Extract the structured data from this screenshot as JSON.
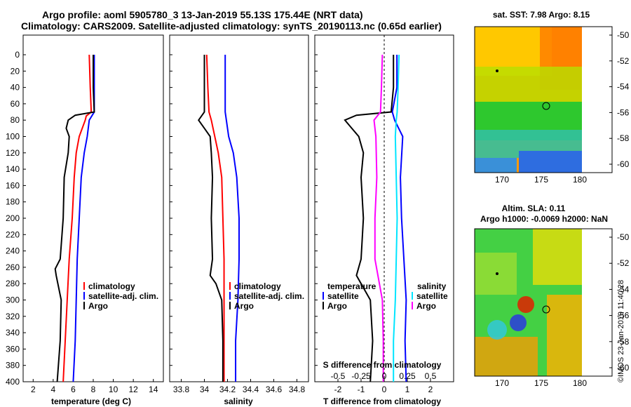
{
  "header": {
    "line1": "Argo profile: aoml 5905780_3 13-Jan-2019 55.13S 175.44E (NRT data)",
    "line2": "Climatology: CARS2009. Satellite-adjusted climatology: synTS_20190113.nc (0.65d earlier)"
  },
  "colors": {
    "climatology": "#ff0000",
    "satellite": "#0000ff",
    "argo": "#000000",
    "salinity_diff_clim": "#ff00ff",
    "salinity_diff_sat": "#00e5ff"
  },
  "depth_axis": {
    "ticks": [
      "0",
      "20",
      "40",
      "60",
      "80",
      "100",
      "120",
      "140",
      "160",
      "180",
      "200",
      "220",
      "240",
      "260",
      "280",
      "300",
      "320",
      "340",
      "360",
      "380",
      "400"
    ]
  },
  "panels": {
    "temperature": {
      "xlabel": "temperature (deg C)",
      "xticks": [
        "2",
        "4",
        "6",
        "8",
        "10",
        "12",
        "14"
      ],
      "legend": [
        "climatology",
        "satellite-adj. clim.",
        "Argo"
      ]
    },
    "salinity": {
      "xlabel": "salinity",
      "xticks": [
        "33.8",
        "34",
        "34.2",
        "34.4",
        "34.6",
        "34.8"
      ],
      "legend": [
        "climatology",
        "satellite-adj. clim.",
        "Argo"
      ]
    },
    "difference": {
      "xlabel": "T difference from climatology",
      "top_label": "S difference from climatology",
      "xticks_T": [
        "-2",
        "-1",
        "0",
        "1",
        "2"
      ],
      "xticks_S": [
        "-0.5",
        "-0.25",
        "0",
        "0.25",
        "0.5"
      ],
      "legend_temp_title": "temperature",
      "legend_sal_title": "salinity",
      "legend_temp": [
        "satellite",
        "Argo"
      ],
      "legend_sal": [
        "satellite",
        "Argo"
      ]
    }
  },
  "maps": {
    "sst": {
      "title": "sat. SST: 7.98 Argo: 8.15",
      "yticks": [
        "-50",
        "-52",
        "-54",
        "-56",
        "-58",
        "-60"
      ],
      "xticks": [
        "170",
        "175",
        "180"
      ]
    },
    "sla": {
      "title1": "Altim. SLA: 0.11",
      "title2": "Argo h1000: -0.0069 h2000: NaN",
      "yticks": [
        "-50",
        "-52",
        "-54",
        "-56",
        "-58",
        "-60"
      ],
      "xticks": [
        "170",
        "175",
        "180"
      ]
    }
  },
  "watermark": "©IMOS 23-Jan-2019 11:40:28",
  "chart_data": [
    {
      "type": "line",
      "title": "temperature profile",
      "xlabel": "temperature (deg C)",
      "ylabel": "depth",
      "xlim": [
        1,
        15
      ],
      "ylim": [
        400,
        0
      ],
      "series": [
        {
          "name": "climatology",
          "depth": [
            0,
            40,
            70,
            75,
            80,
            100,
            120,
            150,
            200,
            250,
            300,
            350,
            400
          ],
          "values": [
            7.6,
            7.7,
            7.8,
            7.3,
            7.2,
            6.6,
            6.3,
            6.1,
            5.9,
            5.6,
            5.4,
            5.2,
            5.0
          ]
        },
        {
          "name": "satellite-adj. clim.",
          "depth": [
            0,
            40,
            70,
            80,
            100,
            120,
            150,
            200,
            250,
            300,
            350,
            400
          ],
          "values": [
            8.1,
            8.1,
            8.1,
            7.6,
            7.4,
            7.1,
            6.8,
            6.6,
            6.4,
            6.3,
            6.2,
            6.0
          ]
        },
        {
          "name": "Argo",
          "depth": [
            0,
            40,
            70,
            74,
            80,
            90,
            100,
            120,
            150,
            200,
            250,
            262,
            270,
            300,
            350,
            400
          ],
          "values": [
            8.0,
            8.0,
            8.1,
            6.2,
            5.5,
            5.3,
            5.6,
            5.5,
            5.1,
            5.0,
            4.7,
            4.2,
            4.3,
            4.8,
            4.7,
            4.4
          ]
        }
      ]
    },
    {
      "type": "line",
      "title": "salinity profile",
      "xlabel": "salinity",
      "ylabel": "depth",
      "xlim": [
        33.7,
        34.9
      ],
      "ylim": [
        400,
        0
      ],
      "series": [
        {
          "name": "climatology",
          "depth": [
            0,
            40,
            70,
            80,
            100,
            120,
            150,
            200,
            250,
            300,
            350,
            400
          ],
          "values": [
            34.02,
            34.03,
            34.04,
            34.06,
            34.09,
            34.12,
            34.15,
            34.16,
            34.17,
            34.17,
            34.17,
            34.17
          ]
        },
        {
          "name": "satellite-adj. clim.",
          "depth": [
            0,
            40,
            70,
            80,
            100,
            120,
            150,
            200,
            250,
            300,
            350,
            400
          ],
          "values": [
            34.18,
            34.18,
            34.18,
            34.19,
            34.21,
            34.25,
            34.28,
            34.3,
            34.3,
            34.29,
            34.27,
            34.27
          ]
        },
        {
          "name": "Argo",
          "depth": [
            0,
            40,
            70,
            80,
            90,
            100,
            120,
            150,
            200,
            250,
            270,
            280,
            300,
            350,
            400
          ],
          "values": [
            34.0,
            34.0,
            34.0,
            33.95,
            34.0,
            34.05,
            34.06,
            34.07,
            34.06,
            34.07,
            34.05,
            34.1,
            34.15,
            34.16,
            34.16
          ]
        }
      ]
    },
    {
      "type": "line",
      "title": "difference from climatology",
      "xlabel": "T difference from climatology",
      "ylabel": "depth",
      "xlim": [
        -3,
        3
      ],
      "ylim": [
        400,
        0
      ],
      "series": [
        {
          "name": "temperature satellite",
          "depth": [
            0,
            40,
            70,
            80,
            100,
            150,
            200,
            250,
            300,
            350,
            400
          ],
          "values": [
            0.55,
            0.55,
            0.35,
            0.45,
            0.8,
            0.7,
            0.75,
            0.85,
            0.95,
            0.9,
            0.95
          ]
        },
        {
          "name": "temperature Argo",
          "depth": [
            0,
            40,
            70,
            74,
            80,
            90,
            100,
            120,
            150,
            200,
            250,
            270,
            300,
            350,
            400
          ],
          "values": [
            0.4,
            0.4,
            0.3,
            -1.2,
            -1.7,
            -1.4,
            -1.1,
            -0.9,
            -1.0,
            -0.9,
            -1.0,
            -1.2,
            -0.6,
            -0.5,
            -0.6
          ]
        },
        {
          "name": "salinity satellite",
          "depth": [
            0,
            40,
            70,
            80,
            100,
            150,
            200,
            250,
            300,
            350,
            400
          ],
          "values": [
            0.16,
            0.15,
            0.14,
            0.13,
            0.12,
            0.13,
            0.14,
            0.13,
            0.12,
            0.1,
            0.1
          ]
        },
        {
          "name": "salinity Argo",
          "depth": [
            0,
            40,
            70,
            80,
            100,
            150,
            200,
            250,
            300,
            350,
            400
          ],
          "values": [
            -0.02,
            -0.03,
            -0.04,
            -0.11,
            -0.09,
            -0.08,
            -0.1,
            -0.1,
            -0.02,
            -0.01,
            -0.01
          ]
        }
      ]
    }
  ]
}
